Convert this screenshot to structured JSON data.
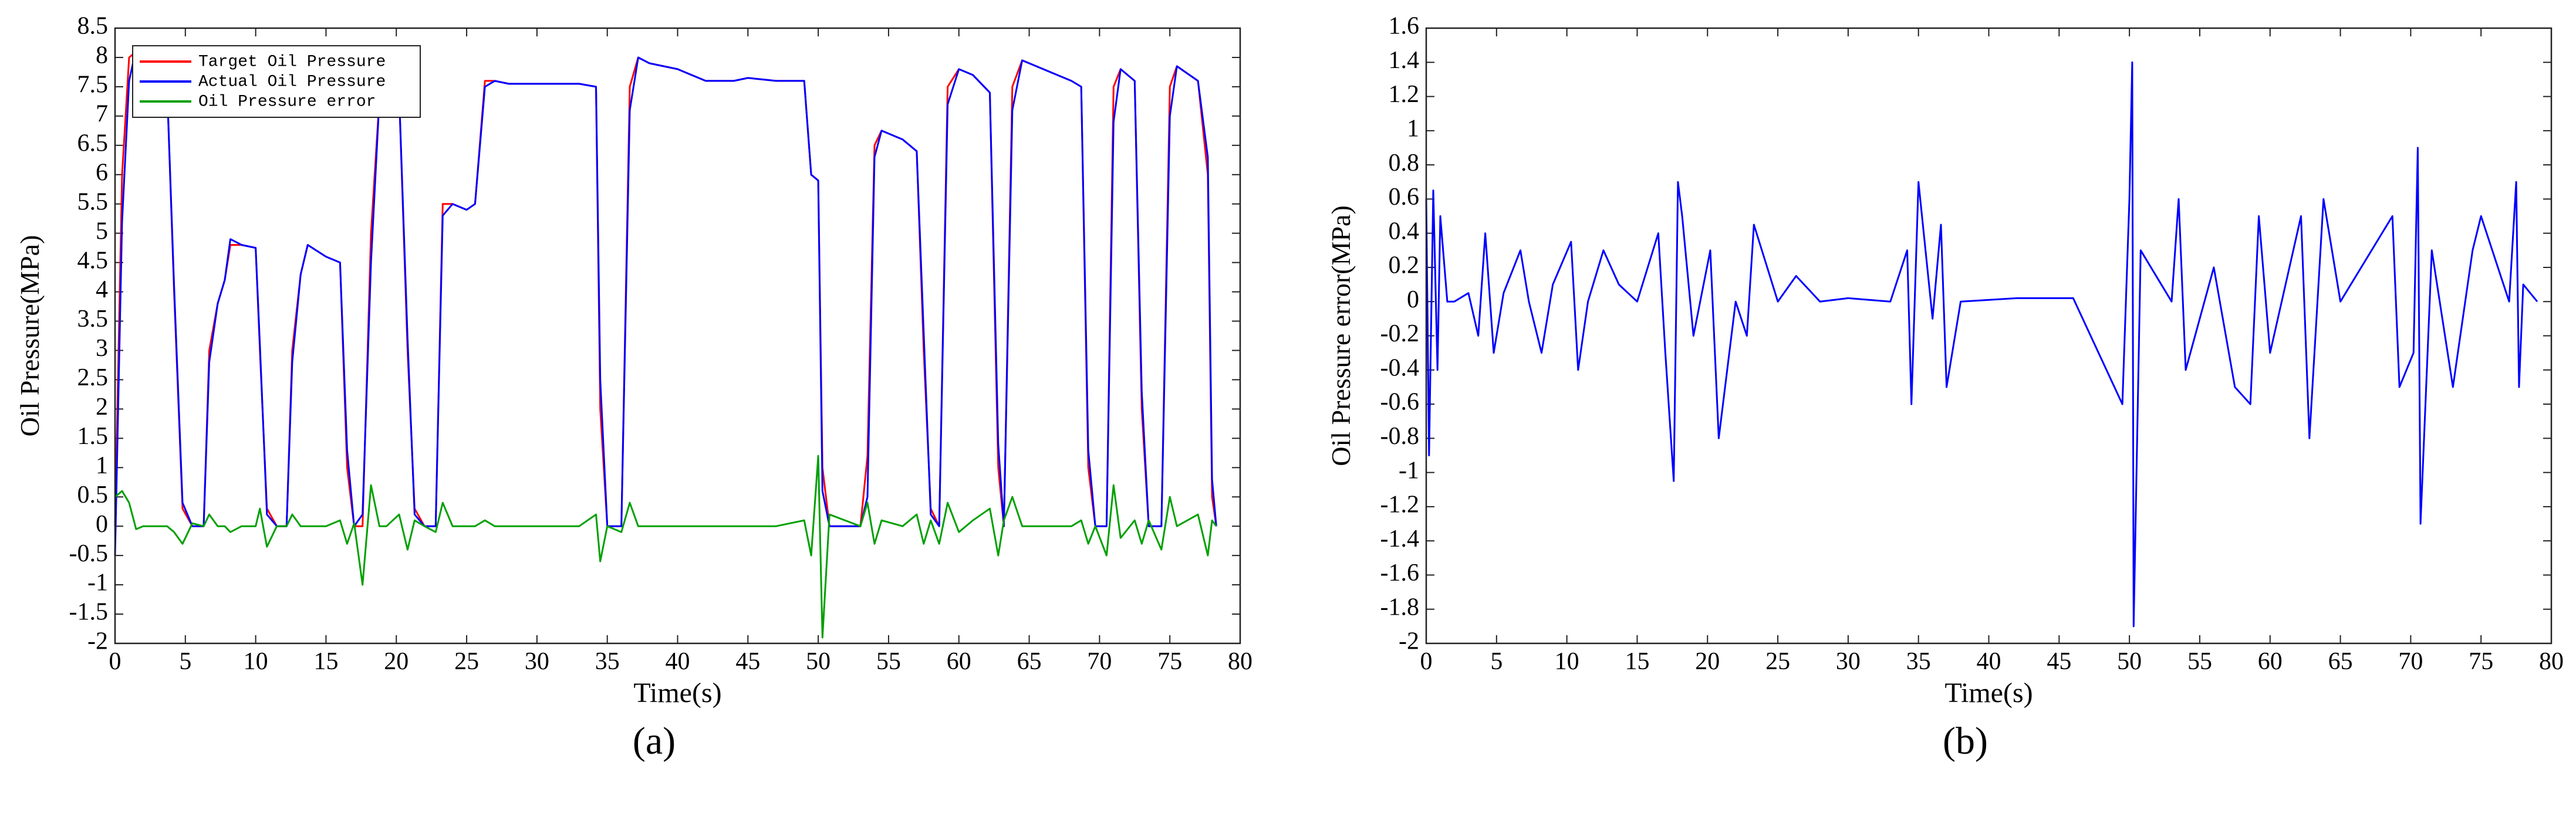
{
  "chart_data": [
    {
      "type": "line",
      "caption": "(a)",
      "xlabel": "Time(s)",
      "ylabel": "Oil Pressure(MPa)",
      "xlim": [
        0,
        80
      ],
      "xticks": [
        0,
        5,
        10,
        15,
        20,
        25,
        30,
        35,
        40,
        45,
        50,
        55,
        60,
        65,
        70,
        75,
        80
      ],
      "ylim": [
        -2,
        8.5
      ],
      "yticks": [
        -2,
        -1.5,
        -1,
        -0.5,
        0,
        0.5,
        1,
        1.5,
        2,
        2.5,
        3,
        3.5,
        4,
        4.5,
        5,
        5.5,
        6,
        6.5,
        7,
        7.5,
        8,
        8.5
      ],
      "legend": "upper left",
      "x": [
        0,
        0.5,
        1,
        1.5,
        2,
        3,
        3.7,
        4.2,
        4.8,
        5.5,
        6.3,
        6.7,
        7.3,
        7.8,
        8.2,
        9,
        10,
        10.3,
        10.8,
        11.5,
        12.2,
        12.6,
        13.2,
        13.7,
        15,
        16,
        16.5,
        17,
        17.6,
        18.2,
        18.8,
        19.3,
        20.2,
        20.8,
        21.3,
        22,
        22.8,
        23.3,
        24,
        25,
        25.6,
        26.3,
        27,
        28,
        30,
        33,
        34.2,
        34.5,
        35,
        36,
        36.6,
        37.2,
        38,
        40,
        42,
        44,
        45,
        47,
        49,
        49.5,
        50,
        50.3,
        50.8,
        53,
        53.5,
        54,
        54.5,
        56,
        57,
        57.5,
        58,
        58.6,
        59.2,
        60,
        61,
        62.2,
        62.8,
        63.2,
        63.8,
        64.5,
        66,
        68,
        68.7,
        69.2,
        69.7,
        70.5,
        71,
        71.5,
        72.5,
        73,
        73.5,
        74.4,
        75,
        75.5,
        77,
        77.7,
        78,
        78.3
      ],
      "series": [
        {
          "name": "Target Oil Pressure",
          "color": "#ff0000",
          "values": [
            0,
            6,
            8,
            8.1,
            8.0,
            7.9,
            7.5,
            4,
            0.3,
            0,
            0,
            3,
            3.8,
            4.2,
            4.8,
            4.8,
            4.75,
            3,
            0.3,
            0,
            0,
            3,
            4.3,
            4.8,
            4.6,
            4.5,
            1,
            0,
            0,
            5,
            7.3,
            7.6,
            7.4,
            3,
            0.3,
            0,
            0,
            5.5,
            5.5,
            5.4,
            5.5,
            7.6,
            7.6,
            7.55,
            7.55,
            7.55,
            7.5,
            2,
            0,
            0,
            7.5,
            8.0,
            7.9,
            7.8,
            7.6,
            7.6,
            7.65,
            7.6,
            7.6,
            6,
            5.9,
            1,
            0,
            0,
            1.2,
            6.5,
            6.75,
            6.6,
            6.4,
            3,
            0.3,
            0,
            7.5,
            7.8,
            7.7,
            7.4,
            1,
            0,
            7.5,
            7.95,
            7.8,
            7.6,
            7.5,
            1,
            0,
            0,
            7.5,
            7.8,
            7.6,
            2,
            0,
            0,
            7.5,
            7.85,
            7.6,
            6,
            0.5,
            0
          ]
        },
        {
          "name": "Actual Oil Pressure",
          "color": "#0000ff",
          "values": [
            -0.5,
            5.2,
            7.6,
            8.15,
            8.0,
            7.9,
            7.5,
            4.1,
            0.4,
            0,
            0,
            2.8,
            3.8,
            4.2,
            4.9,
            4.8,
            4.75,
            3.1,
            0.2,
            0,
            0,
            2.8,
            4.3,
            4.8,
            4.6,
            4.5,
            1.3,
            0,
            0.2,
            4.5,
            7.3,
            7.6,
            7.4,
            3.2,
            0.2,
            0,
            0,
            5.3,
            5.5,
            5.4,
            5.5,
            7.5,
            7.6,
            7.55,
            7.55,
            7.55,
            7.5,
            2.5,
            0,
            0,
            7.1,
            8.0,
            7.9,
            7.8,
            7.6,
            7.6,
            7.65,
            7.6,
            7.6,
            6,
            5.9,
            0.6,
            0,
            0,
            0.5,
            6.3,
            6.75,
            6.6,
            6.4,
            3.3,
            0.2,
            0,
            7.2,
            7.8,
            7.7,
            7.4,
            1.4,
            0,
            7.1,
            7.95,
            7.8,
            7.6,
            7.5,
            1.3,
            0,
            0,
            6.9,
            7.8,
            7.6,
            2.3,
            0,
            0,
            7.0,
            7.85,
            7.6,
            6.3,
            0.8,
            0
          ]
        },
        {
          "name": "Oil Pressure error",
          "color": "#00a000",
          "values": [
            0.5,
            0.6,
            0.4,
            -0.05,
            0,
            0,
            0,
            -0.1,
            -0.3,
            0.05,
            0,
            0.2,
            0,
            0,
            -0.1,
            0,
            0,
            0.3,
            -0.35,
            0,
            0,
            0.2,
            0,
            0,
            0,
            0.1,
            -0.3,
            0.05,
            -1.0,
            0.7,
            0,
            0,
            0.2,
            -0.4,
            0.1,
            0,
            -0.1,
            0.4,
            0,
            0,
            0,
            0.1,
            0,
            0,
            0,
            0,
            0.2,
            -0.6,
            0,
            -0.1,
            0.4,
            0,
            0,
            0,
            0,
            0,
            0,
            0,
            0.1,
            -0.5,
            1.2,
            -1.9,
            0.2,
            0,
            0.4,
            -0.3,
            0.1,
            0,
            0.2,
            -0.3,
            0.1,
            -0.3,
            0.4,
            -0.1,
            0.1,
            0.3,
            -0.5,
            0.1,
            0.5,
            0,
            0,
            0,
            0.1,
            -0.3,
            0,
            -0.5,
            0.7,
            -0.2,
            0.1,
            -0.3,
            0.1,
            -0.4,
            0.5,
            0,
            0.2,
            -0.5,
            0.1,
            0
          ]
        }
      ]
    },
    {
      "type": "line",
      "caption": "(b)",
      "xlabel": "Time(s)",
      "ylabel": "Oil Pressure error(MPa)",
      "xlim": [
        0,
        80
      ],
      "xticks": [
        0,
        5,
        10,
        15,
        20,
        25,
        30,
        35,
        40,
        45,
        50,
        55,
        60,
        65,
        70,
        75,
        80
      ],
      "ylim": [
        -2,
        1.6
      ],
      "yticks": [
        -2,
        -1.8,
        -1.6,
        -1.4,
        -1.2,
        -1,
        -0.8,
        -0.6,
        -0.4,
        -0.2,
        0,
        0.2,
        0.4,
        0.6,
        0.8,
        1,
        1.2,
        1.4,
        1.6
      ],
      "x": [
        0,
        0.2,
        0.5,
        0.8,
        1,
        1.5,
        2,
        3,
        3.7,
        4.2,
        4.8,
        5.5,
        6.7,
        7.3,
        8.2,
        9,
        10.3,
        10.8,
        11.5,
        12.6,
        13.7,
        15,
        16.5,
        17,
        17.6,
        17.9,
        18.2,
        19,
        20.2,
        20.8,
        22,
        22.8,
        23.3,
        25,
        26.3,
        28,
        30,
        33,
        34.2,
        34.5,
        35,
        36,
        36.6,
        37,
        38,
        42,
        46,
        49.5,
        50,
        50.2,
        50.3,
        50.8,
        53,
        53.5,
        54,
        56,
        57.5,
        58.6,
        59.2,
        60,
        62.2,
        62.8,
        63.8,
        65,
        68.7,
        69.2,
        70.2,
        70.5,
        70.7,
        71.5,
        73,
        74.4,
        75,
        77,
        77.5,
        77.7,
        78,
        79
      ],
      "series": [
        {
          "color": "#0000ff",
          "values": [
            0.6,
            -0.9,
            0.65,
            -0.4,
            0.5,
            0,
            0,
            0.05,
            -0.2,
            0.4,
            -0.3,
            0.05,
            0.3,
            0,
            -0.3,
            0.1,
            0.35,
            -0.4,
            0,
            0.3,
            0.1,
            0,
            0.4,
            -0.3,
            -1.05,
            0.7,
            0.5,
            -0.2,
            0.3,
            -0.8,
            0,
            -0.2,
            0.45,
            0,
            0.15,
            0,
            0.02,
            0,
            0.3,
            -0.6,
            0.7,
            -0.1,
            0.45,
            -0.5,
            0,
            0.02,
            0.02,
            -0.6,
            0.6,
            1.4,
            -1.9,
            0.3,
            0,
            0.6,
            -0.4,
            0.2,
            -0.5,
            -0.6,
            0.5,
            -0.3,
            0.5,
            -0.8,
            0.6,
            0,
            0.5,
            -0.5,
            -0.3,
            0.9,
            -1.3,
            0.3,
            -0.5,
            0.3,
            0.5,
            0,
            0.7,
            -0.5,
            0.1,
            0
          ]
        }
      ]
    }
  ]
}
